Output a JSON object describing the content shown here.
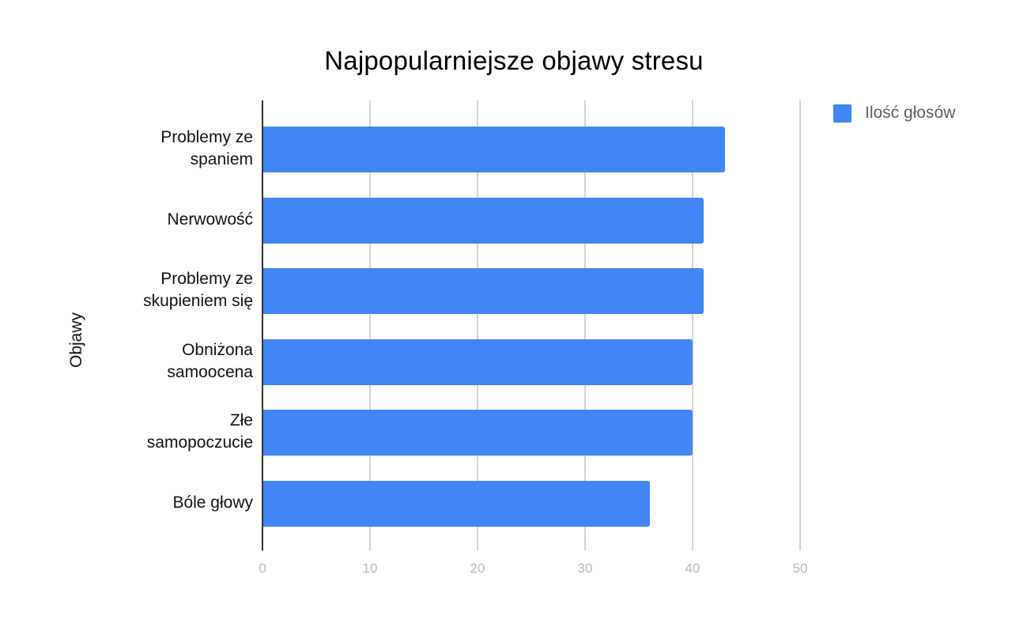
{
  "chart_data": {
    "type": "bar",
    "orientation": "horizontal",
    "title": "Najpopularniejsze objawy stresu",
    "xlabel": "",
    "ylabel": "Objawy",
    "categories": [
      "Problemy ze spaniem",
      "Nerwowość",
      "Problemy ze skupieniem się",
      "Obniżona samoocena",
      "Złe samopoczucie",
      "Bóle głowy"
    ],
    "series": [
      {
        "name": "Ilość głosów",
        "color": "#4285f4",
        "values": [
          43,
          41,
          41,
          40,
          40,
          36
        ]
      }
    ],
    "xlim": [
      0,
      50
    ],
    "xticks": [
      "0",
      "10",
      "20",
      "30",
      "40",
      "50"
    ],
    "grid": true,
    "legend_position": "right"
  },
  "labels": {
    "title": "Najpopularniejsze objawy stresu",
    "ylabel": "Objawy",
    "legend": "Ilość głosów",
    "ytick_lines": [
      [
        "Problemy ze",
        "spaniem"
      ],
      [
        "Nerwowość"
      ],
      [
        "Problemy ze",
        "skupieniem się"
      ],
      [
        "Obniżona",
        "samoocena"
      ],
      [
        "Złe",
        "samopoczucie"
      ],
      [
        "Bóle głowy"
      ]
    ],
    "xticks": [
      "0",
      "10",
      "20",
      "30",
      "40",
      "50"
    ]
  }
}
